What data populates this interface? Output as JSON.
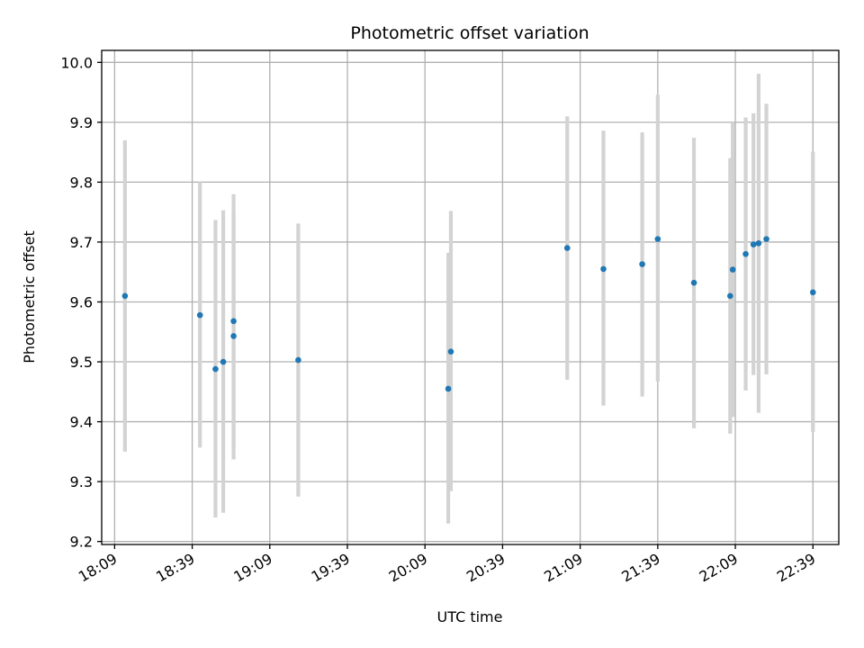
{
  "chart_data": {
    "type": "scatter",
    "title": "Photometric offset variation",
    "xlabel": "UTC time",
    "ylabel": "Photometric offset",
    "xlim": [
      "18:04",
      "22:49"
    ],
    "ylim": [
      9.195,
      10.02
    ],
    "x_ticks": [
      "18:09",
      "18:39",
      "19:09",
      "19:39",
      "20:09",
      "20:39",
      "21:09",
      "21:39",
      "22:09",
      "22:39"
    ],
    "y_ticks": [
      "9.2",
      "9.3",
      "9.4",
      "9.5",
      "9.6",
      "9.7",
      "9.8",
      "9.9",
      "10.0"
    ],
    "grid": true,
    "colors": {
      "point": "#1f77b4",
      "errorbar": "#d3d3d3",
      "grid": "#b0b0b0"
    },
    "points": [
      {
        "x": "18:13",
        "y": 9.61,
        "low": 9.35,
        "high": 9.87
      },
      {
        "x": "18:42",
        "y": 9.578,
        "low": 9.357,
        "high": 9.8
      },
      {
        "x": "18:48",
        "y": 9.488,
        "low": 9.24,
        "high": 9.737
      },
      {
        "x": "18:51",
        "y": 9.5,
        "low": 9.248,
        "high": 9.753
      },
      {
        "x": "18:55",
        "y": 9.568,
        "low": 9.355,
        "high": 9.78
      },
      {
        "x": "18:55",
        "y": 9.543,
        "low": 9.337,
        "high": 9.748
      },
      {
        "x": "19:20",
        "y": 9.503,
        "low": 9.275,
        "high": 9.731
      },
      {
        "x": "20:18",
        "y": 9.455,
        "low": 9.23,
        "high": 9.682
      },
      {
        "x": "20:19",
        "y": 9.517,
        "low": 9.284,
        "high": 9.752
      },
      {
        "x": "21:04",
        "y": 9.69,
        "low": 9.47,
        "high": 9.91
      },
      {
        "x": "21:18",
        "y": 9.655,
        "low": 9.427,
        "high": 9.886
      },
      {
        "x": "21:33",
        "y": 9.663,
        "low": 9.442,
        "high": 9.883
      },
      {
        "x": "21:39",
        "y": 9.705,
        "low": 9.467,
        "high": 9.946
      },
      {
        "x": "21:53",
        "y": 9.632,
        "low": 9.389,
        "high": 9.874
      },
      {
        "x": "22:07",
        "y": 9.61,
        "low": 9.38,
        "high": 9.84
      },
      {
        "x": "22:08",
        "y": 9.654,
        "low": 9.408,
        "high": 9.9
      },
      {
        "x": "22:13",
        "y": 9.68,
        "low": 9.452,
        "high": 9.908
      },
      {
        "x": "22:16",
        "y": 9.696,
        "low": 9.478,
        "high": 9.915
      },
      {
        "x": "22:18",
        "y": 9.698,
        "low": 9.415,
        "high": 9.981
      },
      {
        "x": "22:21",
        "y": 9.705,
        "low": 9.479,
        "high": 9.931
      },
      {
        "x": "22:39",
        "y": 9.616,
        "low": 9.383,
        "high": 9.851
      }
    ]
  }
}
